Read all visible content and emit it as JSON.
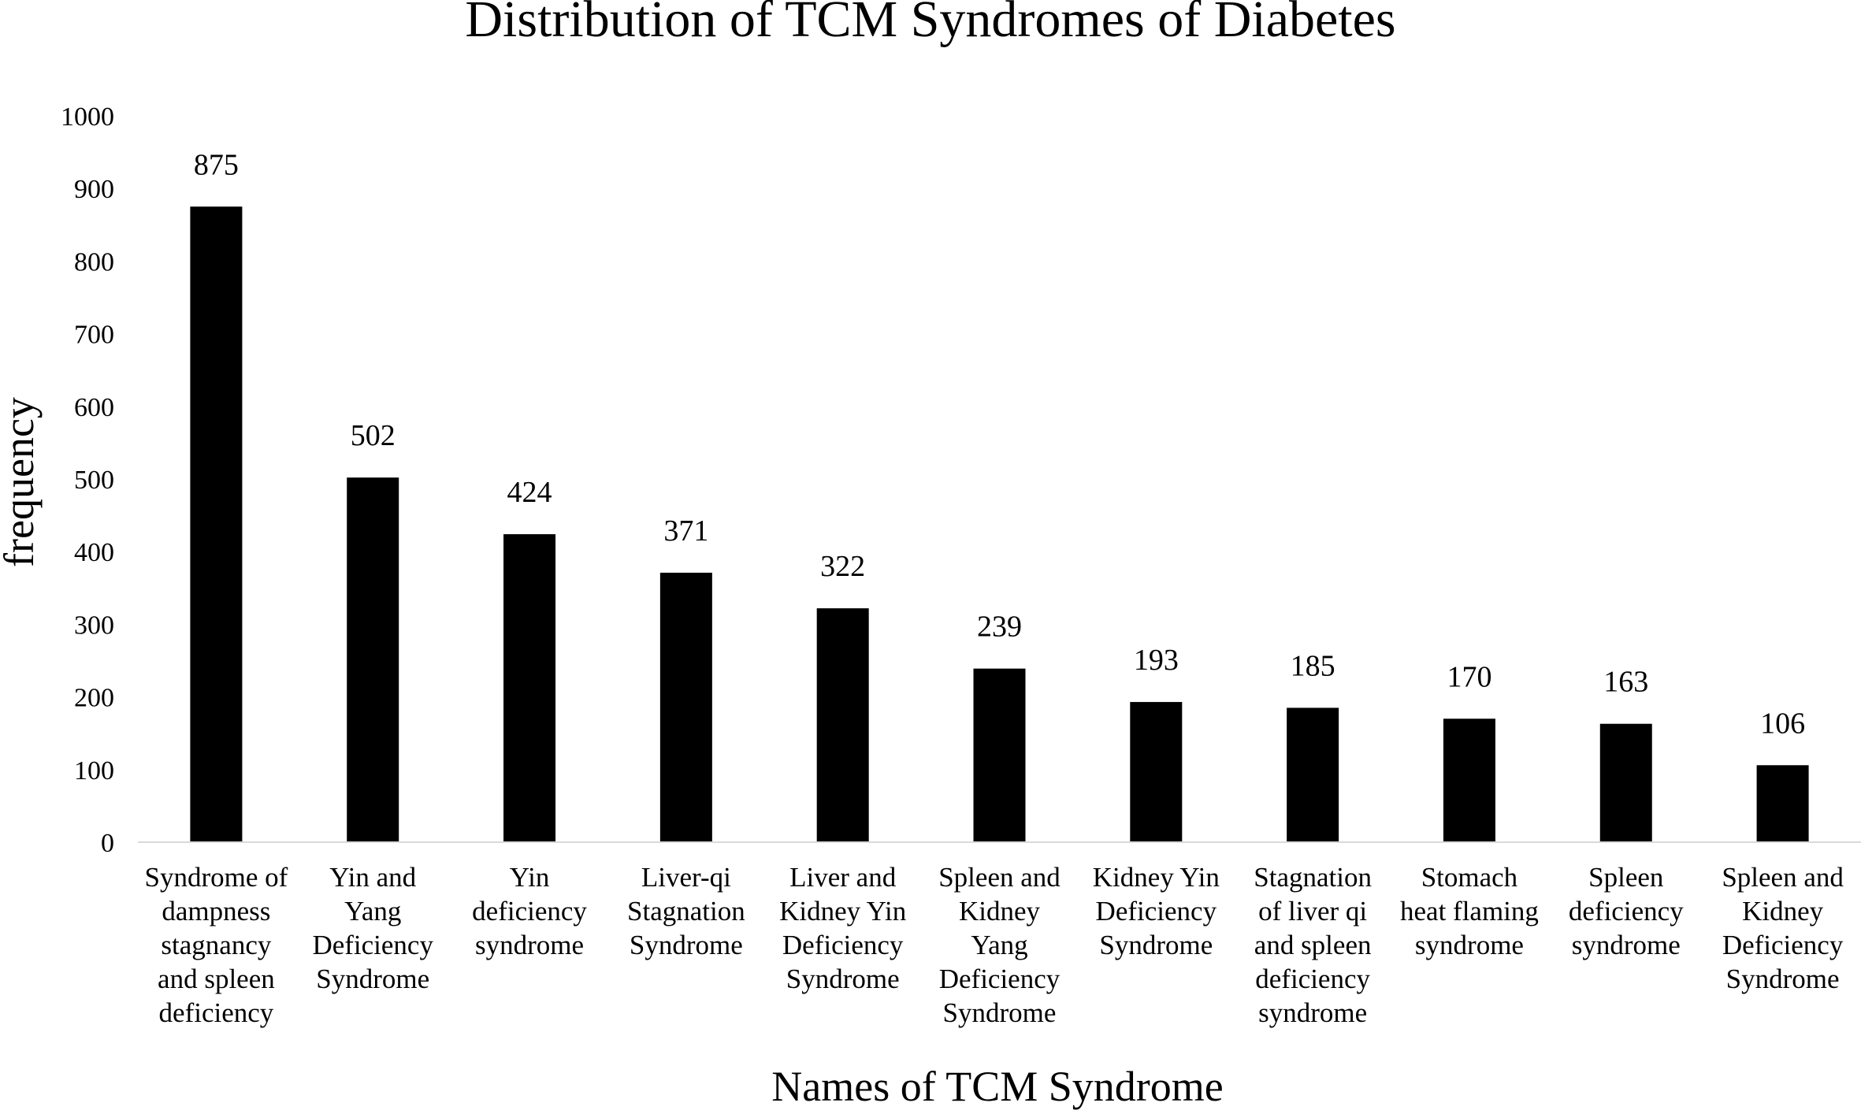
{
  "chart_data": {
    "type": "bar",
    "title": "Distribution of TCM Syndromes of Diabetes",
    "xlabel": "Names of TCM Syndrome",
    "ylabel": "frequency",
    "ylim": [
      0,
      1000
    ],
    "yticks": [
      0,
      100,
      200,
      300,
      400,
      500,
      600,
      700,
      800,
      900,
      1000
    ],
    "grid": false,
    "legend": "none",
    "bar_color": "#000000",
    "categories": [
      [
        "Syndrome of",
        "dampness",
        "stagnancy",
        "and spleen",
        "deficiency"
      ],
      [
        "Yin and",
        "Yang",
        "Deficiency",
        "Syndrome"
      ],
      [
        "Yin",
        "deficiency",
        "syndrome"
      ],
      [
        "Liver-qi",
        "Stagnation",
        "Syndrome"
      ],
      [
        "Liver and",
        "Kidney Yin",
        "Deficiency",
        "Syndrome"
      ],
      [
        "Spleen and",
        "Kidney",
        "Yang",
        "Deficiency",
        "Syndrome"
      ],
      [
        "Kidney Yin",
        "Deficiency",
        "Syndrome"
      ],
      [
        "Stagnation",
        "of liver qi",
        "and spleen",
        "deficiency",
        "syndrome"
      ],
      [
        "Stomach",
        "heat flaming",
        "syndrome"
      ],
      [
        "Spleen",
        "deficiency",
        "syndrome"
      ],
      [
        "Spleen and",
        "Kidney",
        "Deficiency",
        "Syndrome"
      ]
    ],
    "values": [
      875,
      502,
      424,
      371,
      322,
      239,
      193,
      185,
      170,
      163,
      106
    ],
    "data_labels": [
      "875",
      "502",
      "424",
      "371",
      "322",
      "239",
      "193",
      "185",
      "170",
      "163",
      "106"
    ]
  }
}
